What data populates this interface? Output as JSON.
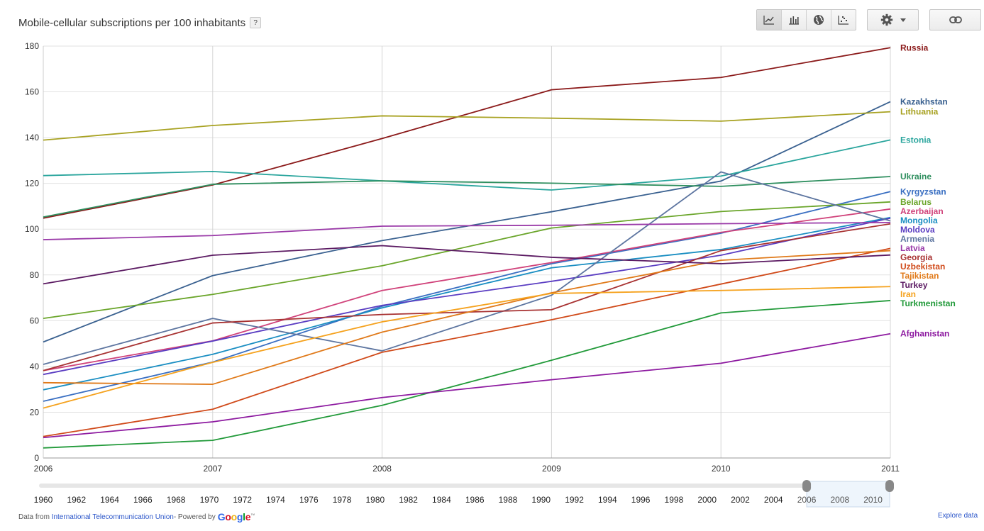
{
  "header": {
    "title": "Mobile-cellular subscriptions per 100 inhabitants",
    "help_label": "?"
  },
  "toolbar": {
    "views": [
      "line-chart-icon",
      "bar-chart-icon",
      "globe-map-icon",
      "scatter-chart-icon"
    ],
    "active_view": "line-chart-icon",
    "settings_icon": "gear-icon",
    "dropdown_icon": "caret-down-icon",
    "link_icon": "link-icon"
  },
  "chart_data": {
    "type": "line",
    "title": "Mobile-cellular subscriptions per 100 inhabitants",
    "x": [
      2006,
      2007,
      2008,
      2009,
      2010,
      2011
    ],
    "xlim": [
      2006,
      2011
    ],
    "ylim": [
      0,
      180
    ],
    "y_ticks": [
      0,
      20,
      40,
      60,
      80,
      100,
      120,
      140,
      160,
      180
    ],
    "x_ticks": [
      "2006",
      "2007",
      "2008",
      "2009",
      "2010",
      "2011"
    ],
    "grid": true,
    "legend": "right (end-of-line labels)",
    "series": [
      {
        "name": "Russia",
        "color": "#8b1a1a",
        "values": [
          104.8,
          119.3,
          139.6,
          160.9,
          166.3,
          179.3
        ]
      },
      {
        "name": "Kazakhstan",
        "color": "#3a6190",
        "values": [
          50.7,
          79.7,
          95.0,
          107.6,
          121.0,
          155.7
        ]
      },
      {
        "name": "Lithuania",
        "color": "#a8a222",
        "values": [
          138.9,
          145.3,
          149.5,
          148.5,
          147.2,
          151.3
        ]
      },
      {
        "name": "Estonia",
        "color": "#2aa59d",
        "values": [
          123.4,
          125.2,
          121.1,
          117.1,
          123.2,
          139.0
        ]
      },
      {
        "name": "Ukraine",
        "color": "#2f8f5f",
        "values": [
          105.3,
          119.6,
          121.1,
          120.1,
          118.7,
          123.0
        ]
      },
      {
        "name": "Kyrgyzstan",
        "color": "#3a6fc2",
        "values": [
          24.8,
          41.9,
          66.3,
          84.9,
          98.2,
          116.4
        ]
      },
      {
        "name": "Belarus",
        "color": "#6aa52a",
        "values": [
          61.0,
          71.5,
          84.0,
          100.5,
          107.7,
          111.9
        ]
      },
      {
        "name": "Azerbaijan",
        "color": "#d0427a",
        "values": [
          38.2,
          51.2,
          73.2,
          85.4,
          98.6,
          108.8
        ]
      },
      {
        "name": "Mongolia",
        "color": "#1a8ec2",
        "values": [
          29.8,
          45.3,
          65.6,
          83.1,
          91.1,
          105.1
        ]
      },
      {
        "name": "Moldova",
        "color": "#5a3dc2",
        "values": [
          36.5,
          51.1,
          66.7,
          77.2,
          88.6,
          104.8
        ]
      },
      {
        "name": "Armenia",
        "color": "#5d75a0",
        "values": [
          40.9,
          61.0,
          46.8,
          71.1,
          125.0,
          103.6
        ]
      },
      {
        "name": "Latvia",
        "color": "#9a3aa8",
        "values": [
          95.4,
          97.2,
          101.3,
          101.7,
          102.4,
          102.9
        ]
      },
      {
        "name": "Georgia",
        "color": "#a83232",
        "values": [
          38.2,
          59.0,
          62.7,
          64.8,
          90.6,
          102.3
        ]
      },
      {
        "name": "Uzbekistan",
        "color": "#d04a1a",
        "values": [
          9.4,
          21.3,
          46.2,
          60.4,
          76.0,
          91.6
        ]
      },
      {
        "name": "Tajikistan",
        "color": "#e07a1a",
        "values": [
          32.9,
          32.2,
          55.0,
          72.2,
          86.4,
          90.6
        ]
      },
      {
        "name": "Turkey",
        "color": "#5b1a62",
        "values": [
          76.1,
          88.6,
          92.8,
          87.7,
          84.9,
          88.7
        ]
      },
      {
        "name": "Iran",
        "color": "#f5a21e",
        "values": [
          21.8,
          41.8,
          59.5,
          71.9,
          73.2,
          74.9
        ]
      },
      {
        "name": "Turkmenistan",
        "color": "#229a3a",
        "values": [
          4.4,
          7.7,
          23.0,
          42.7,
          63.4,
          68.8
        ]
      },
      {
        "name": "Afghanistan",
        "color": "#8d1aa0",
        "values": [
          8.9,
          15.8,
          26.4,
          34.2,
          41.4,
          54.3
        ]
      }
    ]
  },
  "timeline": {
    "years": [
      "1960",
      "1962",
      "1964",
      "1966",
      "1968",
      "1970",
      "1972",
      "1974",
      "1976",
      "1978",
      "1980",
      "1982",
      "1984",
      "1986",
      "1988",
      "1990",
      "1992",
      "1994",
      "1996",
      "1998",
      "2000",
      "2002",
      "2004",
      "2006",
      "2008",
      "2010"
    ],
    "window_start": "2006",
    "window_end": "2011"
  },
  "footer": {
    "data_from": "Data from",
    "source_link": "International Telecommunication Union",
    "powered_by": " - Powered by",
    "google": [
      "G",
      "o",
      "o",
      "g",
      "l",
      "e"
    ],
    "tm": "™",
    "explore": "Explore data"
  }
}
